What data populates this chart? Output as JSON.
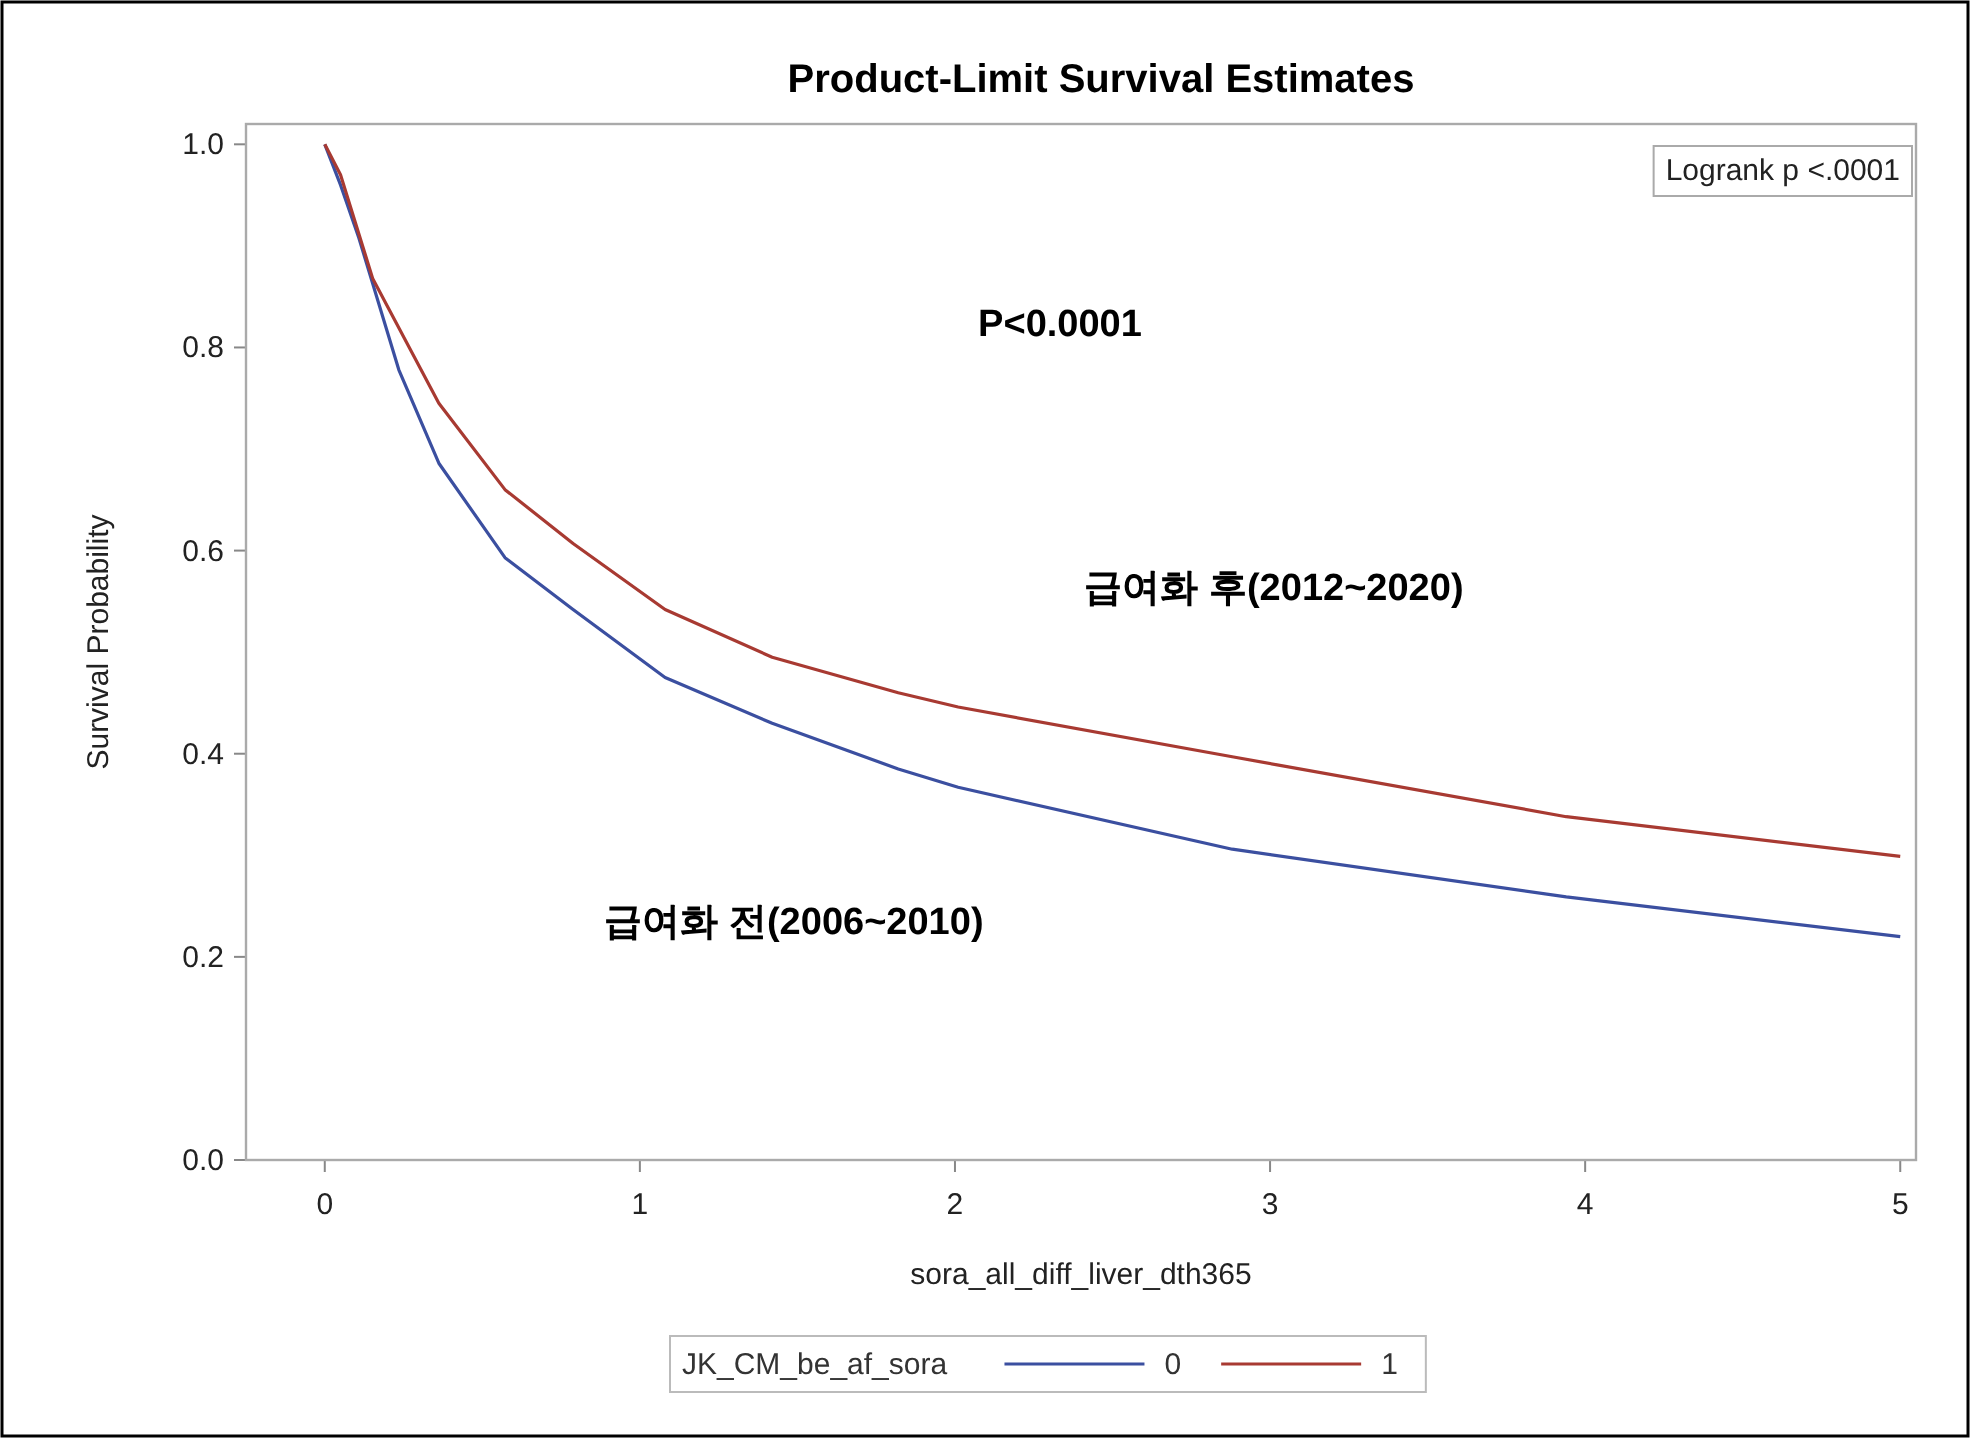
{
  "chart_data": {
    "type": "line",
    "title": "Product-Limit Survival Estimates",
    "xlabel": "sora_all_diff_liver_dth365",
    "ylabel": "Survival Probability",
    "legend_title": "JK_CM_be_af_sora",
    "legend": "bottom",
    "grid": false,
    "line_style": "solid",
    "xlim": [
      -0.25,
      5.05
    ],
    "ylim": [
      0,
      1.02
    ],
    "xticks": [
      0,
      1,
      2,
      3,
      4,
      5
    ],
    "yticks": [
      {
        "value": 0,
        "label": "0.0"
      },
      {
        "value": 0.2,
        "label": "0.2"
      },
      {
        "value": 0.4,
        "label": "0.4"
      },
      {
        "value": 0.6,
        "label": "0.6"
      },
      {
        "value": 0.8,
        "label": "0.8"
      },
      {
        "value": 1,
        "label": "1.0"
      }
    ],
    "series": [
      {
        "name": "0",
        "color": "#3b4fa0",
        "x": [
          0,
          0.05,
          0.108,
          0.235,
          0.362,
          0.572,
          0.788,
          1.08,
          1.42,
          1.82,
          2.01,
          2.88,
          3.94,
          5
        ],
        "values": [
          1,
          0.96,
          0.908,
          0.778,
          0.686,
          0.593,
          0.542,
          0.475,
          0.43,
          0.385,
          0.367,
          0.306,
          0.259,
          0.22
        ]
      },
      {
        "name": "1",
        "color": "#a83a32",
        "x": [
          0,
          0.05,
          0.152,
          0.362,
          0.572,
          0.788,
          1.08,
          1.42,
          1.82,
          2.01,
          2.88,
          3.94,
          5
        ],
        "values": [
          1,
          0.97,
          0.868,
          0.745,
          0.66,
          0.607,
          0.542,
          0.495,
          0.46,
          0.446,
          0.397,
          0.338,
          0.299
        ]
      }
    ],
    "annotations": [
      "Logrank p <.0001",
      "P<0.0001",
      "급여화 후(2012~2020)",
      "급여화 전(2006~2010)"
    ]
  }
}
